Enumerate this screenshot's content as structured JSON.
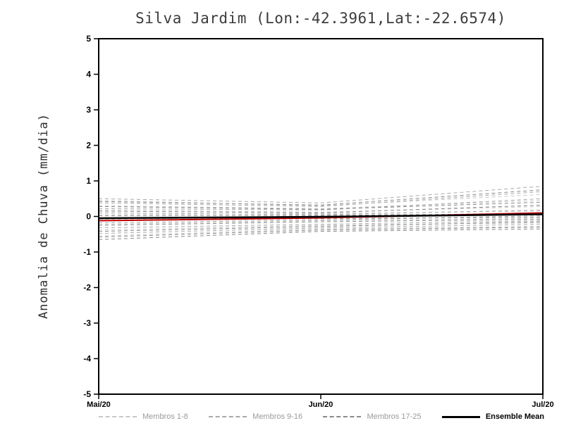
{
  "title": "Silva Jardim (Lon:-42.3961,Lat:-22.6574)",
  "ylabel": "Anomalia de Chuva (mm/dia)",
  "chart_data": {
    "type": "line",
    "x": [
      0,
      0.5,
      1
    ],
    "x_labels": [
      "Mai/20",
      "Jun/20",
      "Jul/20"
    ],
    "ylim": [
      -5,
      5
    ],
    "yticks": [
      5,
      4,
      3,
      2,
      1,
      0,
      -1,
      -2,
      -3,
      -4,
      -5
    ],
    "grid": false,
    "legend_position": "bottom",
    "groups": [
      {
        "label": "Membros 1-8",
        "color": "#c8c8c8",
        "lines": [
          [
            0.45,
            0.3,
            0.62
          ],
          [
            0.3,
            0.22,
            0.45
          ],
          [
            0.18,
            0.12,
            0.28
          ],
          [
            0.05,
            0.08,
            0.15
          ],
          [
            -0.08,
            -0.02,
            0.05
          ],
          [
            -0.22,
            -0.12,
            -0.05
          ],
          [
            -0.38,
            -0.25,
            -0.18
          ],
          [
            -0.55,
            -0.35,
            -0.28
          ]
        ]
      },
      {
        "label": "Membros 9-16",
        "color": "#a9a9a9",
        "lines": [
          [
            0.5,
            0.38,
            0.85
          ],
          [
            0.38,
            0.28,
            0.7
          ],
          [
            0.22,
            0.18,
            0.5
          ],
          [
            0.1,
            0.05,
            0.18
          ],
          [
            -0.05,
            0.0,
            0.1
          ],
          [
            -0.18,
            -0.1,
            0.02
          ],
          [
            -0.32,
            -0.22,
            -0.12
          ],
          [
            -0.48,
            -0.32,
            -0.22
          ]
        ]
      },
      {
        "label": "Membros 17-25",
        "color": "#8a8a8a",
        "lines": [
          [
            0.42,
            0.32,
            0.75
          ],
          [
            0.28,
            0.2,
            0.4
          ],
          [
            0.15,
            0.1,
            0.32
          ],
          [
            0.02,
            0.03,
            0.08
          ],
          [
            -0.12,
            -0.06,
            -0.02
          ],
          [
            -0.25,
            -0.15,
            -0.08
          ],
          [
            -0.42,
            -0.28,
            -0.15
          ],
          [
            -0.58,
            -0.38,
            -0.3
          ],
          [
            -0.65,
            -0.42,
            -0.35
          ]
        ]
      }
    ],
    "ensemble_mean": {
      "label": "Ensemble Mean",
      "color": "#000000",
      "values": [
        -0.05,
        -0.01,
        0.06
      ]
    },
    "reference_line": {
      "color": "#c00000",
      "values": [
        -0.12,
        -0.04,
        0.1
      ]
    }
  }
}
